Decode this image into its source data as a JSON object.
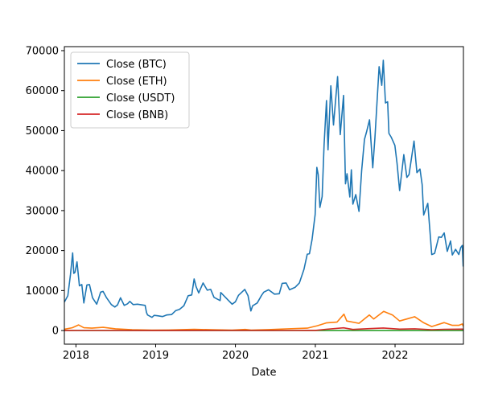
{
  "chart_data": {
    "type": "line",
    "title": "",
    "xlabel": "Date",
    "ylabel": "",
    "xlim": [
      "2017-11-09",
      "2022-11-10"
    ],
    "ylim": [
      -3400,
      71000
    ],
    "yticks": [
      0,
      10000,
      20000,
      30000,
      40000,
      50000,
      60000,
      70000
    ],
    "xticks": [
      {
        "date": "2018-01-01",
        "label": "2018"
      },
      {
        "date": "2019-01-01",
        "label": "2019"
      },
      {
        "date": "2020-01-01",
        "label": "2020"
      },
      {
        "date": "2021-01-01",
        "label": "2021"
      },
      {
        "date": "2022-01-01",
        "label": "2022"
      }
    ],
    "grid": false,
    "legend_position": "upper-left",
    "series": [
      {
        "name": "Close (BTC)",
        "color": "#1f77b4",
        "points": [
          [
            "2017-11-09",
            7100
          ],
          [
            "2017-11-25",
            8700
          ],
          [
            "2017-12-07",
            14000
          ],
          [
            "2017-12-12",
            16800
          ],
          [
            "2017-12-17",
            19400
          ],
          [
            "2017-12-22",
            14300
          ],
          [
            "2017-12-28",
            14600
          ],
          [
            "2018-01-06",
            17200
          ],
          [
            "2018-01-17",
            11200
          ],
          [
            "2018-01-28",
            11500
          ],
          [
            "2018-02-06",
            6900
          ],
          [
            "2018-02-20",
            11400
          ],
          [
            "2018-03-04",
            11500
          ],
          [
            "2018-03-18",
            8200
          ],
          [
            "2018-04-06",
            6600
          ],
          [
            "2018-04-15",
            8000
          ],
          [
            "2018-04-24",
            9600
          ],
          [
            "2018-05-05",
            9800
          ],
          [
            "2018-05-20",
            8300
          ],
          [
            "2018-06-12",
            6500
          ],
          [
            "2018-06-28",
            5900
          ],
          [
            "2018-07-10",
            6400
          ],
          [
            "2018-07-24",
            8200
          ],
          [
            "2018-08-10",
            6300
          ],
          [
            "2018-08-25",
            6700
          ],
          [
            "2018-09-05",
            7300
          ],
          [
            "2018-09-20",
            6500
          ],
          [
            "2018-10-10",
            6600
          ],
          [
            "2018-11-14",
            6300
          ],
          [
            "2018-11-20",
            4500
          ],
          [
            "2018-11-25",
            3900
          ],
          [
            "2018-12-15",
            3300
          ],
          [
            "2018-12-25",
            3800
          ],
          [
            "2019-01-10",
            3700
          ],
          [
            "2019-02-01",
            3500
          ],
          [
            "2019-02-20",
            3900
          ],
          [
            "2019-03-15",
            4000
          ],
          [
            "2019-04-03",
            5000
          ],
          [
            "2019-04-20",
            5300
          ],
          [
            "2019-05-10",
            6200
          ],
          [
            "2019-05-30",
            8700
          ],
          [
            "2019-06-15",
            8900
          ],
          [
            "2019-06-26",
            12900
          ],
          [
            "2019-07-05",
            11000
          ],
          [
            "2019-07-17",
            9400
          ],
          [
            "2019-08-06",
            11900
          ],
          [
            "2019-08-25",
            10100
          ],
          [
            "2019-09-10",
            10300
          ],
          [
            "2019-09-25",
            8300
          ],
          [
            "2019-10-23",
            7500
          ],
          [
            "2019-10-26",
            9500
          ],
          [
            "2019-11-20",
            8100
          ],
          [
            "2019-12-17",
            6600
          ],
          [
            "2020-01-01",
            7200
          ],
          [
            "2020-01-15",
            8800
          ],
          [
            "2020-02-13",
            10300
          ],
          [
            "2020-02-28",
            8700
          ],
          [
            "2020-03-12",
            4900
          ],
          [
            "2020-03-20",
            6200
          ],
          [
            "2020-04-10",
            6900
          ],
          [
            "2020-04-30",
            8800
          ],
          [
            "2020-05-10",
            9600
          ],
          [
            "2020-06-01",
            10200
          ],
          [
            "2020-06-28",
            9100
          ],
          [
            "2020-07-20",
            9200
          ],
          [
            "2020-08-02",
            11800
          ],
          [
            "2020-08-20",
            11900
          ],
          [
            "2020-09-05",
            10200
          ],
          [
            "2020-09-30",
            10800
          ],
          [
            "2020-10-20",
            11900
          ],
          [
            "2020-11-10",
            15300
          ],
          [
            "2020-11-25",
            19100
          ],
          [
            "2020-12-05",
            19200
          ],
          [
            "2020-12-17",
            22800
          ],
          [
            "2020-12-31",
            29000
          ],
          [
            "2021-01-08",
            40800
          ],
          [
            "2021-01-14",
            39000
          ],
          [
            "2021-01-22",
            30800
          ],
          [
            "2021-02-01",
            33500
          ],
          [
            "2021-02-10",
            46400
          ],
          [
            "2021-02-21",
            57500
          ],
          [
            "2021-02-28",
            45200
          ],
          [
            "2021-03-13",
            61200
          ],
          [
            "2021-03-25",
            51400
          ],
          [
            "2021-04-13",
            63500
          ],
          [
            "2021-04-25",
            49000
          ],
          [
            "2021-05-10",
            58800
          ],
          [
            "2021-05-19",
            36700
          ],
          [
            "2021-05-26",
            39200
          ],
          [
            "2021-06-08",
            33400
          ],
          [
            "2021-06-15",
            40200
          ],
          [
            "2021-06-22",
            31600
          ],
          [
            "2021-07-05",
            34000
          ],
          [
            "2021-07-20",
            29800
          ],
          [
            "2021-08-01",
            40000
          ],
          [
            "2021-08-14",
            47800
          ],
          [
            "2021-08-23",
            49600
          ],
          [
            "2021-09-06",
            52700
          ],
          [
            "2021-09-21",
            40700
          ],
          [
            "2021-10-01",
            48200
          ],
          [
            "2021-10-20",
            66000
          ],
          [
            "2021-11-01",
            61300
          ],
          [
            "2021-11-08",
            67600
          ],
          [
            "2021-11-18",
            56900
          ],
          [
            "2021-11-28",
            57200
          ],
          [
            "2021-12-04",
            49300
          ],
          [
            "2021-12-15",
            48300
          ],
          [
            "2021-12-31",
            46300
          ],
          [
            "2022-01-10",
            41800
          ],
          [
            "2022-01-22",
            35000
          ],
          [
            "2022-02-10",
            44000
          ],
          [
            "2022-02-24",
            38300
          ],
          [
            "2022-03-06",
            39000
          ],
          [
            "2022-03-29",
            47400
          ],
          [
            "2022-04-11",
            39500
          ],
          [
            "2022-04-25",
            40400
          ],
          [
            "2022-05-05",
            36500
          ],
          [
            "2022-05-12",
            28900
          ],
          [
            "2022-05-31",
            31800
          ],
          [
            "2022-06-13",
            22500
          ],
          [
            "2022-06-18",
            19000
          ],
          [
            "2022-07-01",
            19300
          ],
          [
            "2022-07-20",
            23400
          ],
          [
            "2022-08-01",
            23300
          ],
          [
            "2022-08-14",
            24400
          ],
          [
            "2022-08-28",
            19800
          ],
          [
            "2022-09-12",
            22400
          ],
          [
            "2022-09-20",
            18900
          ],
          [
            "2022-10-05",
            20300
          ],
          [
            "2022-10-20",
            19000
          ],
          [
            "2022-10-29",
            20800
          ],
          [
            "2022-11-05",
            21300
          ],
          [
            "2022-11-09",
            16000
          ]
        ]
      },
      {
        "name": "Close (ETH)",
        "color": "#ff7f0e",
        "points": [
          [
            "2017-11-09",
            320
          ],
          [
            "2017-12-15",
            700
          ],
          [
            "2018-01-13",
            1400
          ],
          [
            "2018-02-06",
            700
          ],
          [
            "2018-03-15",
            600
          ],
          [
            "2018-05-05",
            800
          ],
          [
            "2018-07-01",
            450
          ],
          [
            "2018-09-15",
            220
          ],
          [
            "2018-12-15",
            90
          ],
          [
            "2019-03-01",
            140
          ],
          [
            "2019-06-26",
            330
          ],
          [
            "2019-09-15",
            200
          ],
          [
            "2019-12-17",
            120
          ],
          [
            "2020-02-15",
            280
          ],
          [
            "2020-03-13",
            110
          ],
          [
            "2020-06-01",
            240
          ],
          [
            "2020-08-20",
            430
          ],
          [
            "2020-11-25",
            600
          ],
          [
            "2021-01-10",
            1200
          ],
          [
            "2021-02-20",
            1900
          ],
          [
            "2021-04-10",
            2100
          ],
          [
            "2021-05-12",
            4100
          ],
          [
            "2021-05-25",
            2400
          ],
          [
            "2021-07-20",
            1800
          ],
          [
            "2021-09-05",
            3900
          ],
          [
            "2021-09-25",
            2900
          ],
          [
            "2021-11-10",
            4800
          ],
          [
            "2021-12-20",
            3900
          ],
          [
            "2022-01-22",
            2400
          ],
          [
            "2022-04-01",
            3450
          ],
          [
            "2022-05-12",
            1950
          ],
          [
            "2022-06-18",
            1000
          ],
          [
            "2022-08-14",
            1980
          ],
          [
            "2022-09-20",
            1300
          ],
          [
            "2022-10-20",
            1300
          ],
          [
            "2022-11-05",
            1650
          ],
          [
            "2022-11-09",
            1100
          ]
        ]
      },
      {
        "name": "Close (USDT)",
        "color": "#2ca02c",
        "points": [
          [
            "2017-11-09",
            1
          ],
          [
            "2018-06-01",
            1
          ],
          [
            "2019-01-01",
            1
          ],
          [
            "2019-06-01",
            1
          ],
          [
            "2020-01-01",
            1
          ],
          [
            "2020-06-01",
            1
          ],
          [
            "2021-01-01",
            1
          ],
          [
            "2021-06-01",
            1
          ],
          [
            "2022-01-01",
            1
          ],
          [
            "2022-06-01",
            1
          ],
          [
            "2022-11-09",
            1
          ]
        ]
      },
      {
        "name": "Close (BNB)",
        "color": "#d62728",
        "points": [
          [
            "2017-11-09",
            2
          ],
          [
            "2018-01-13",
            20
          ],
          [
            "2018-06-01",
            12
          ],
          [
            "2019-01-01",
            6
          ],
          [
            "2019-06-22",
            35
          ],
          [
            "2019-12-01",
            15
          ],
          [
            "2020-03-13",
            10
          ],
          [
            "2020-10-01",
            27
          ],
          [
            "2021-01-01",
            38
          ],
          [
            "2021-02-19",
            330
          ],
          [
            "2021-05-10",
            690
          ],
          [
            "2021-06-22",
            280
          ],
          [
            "2021-09-05",
            490
          ],
          [
            "2021-11-08",
            640
          ],
          [
            "2022-01-22",
            360
          ],
          [
            "2022-04-01",
            445
          ],
          [
            "2022-06-18",
            220
          ],
          [
            "2022-08-14",
            320
          ],
          [
            "2022-11-05",
            360
          ],
          [
            "2022-11-09",
            290
          ]
        ]
      }
    ]
  }
}
